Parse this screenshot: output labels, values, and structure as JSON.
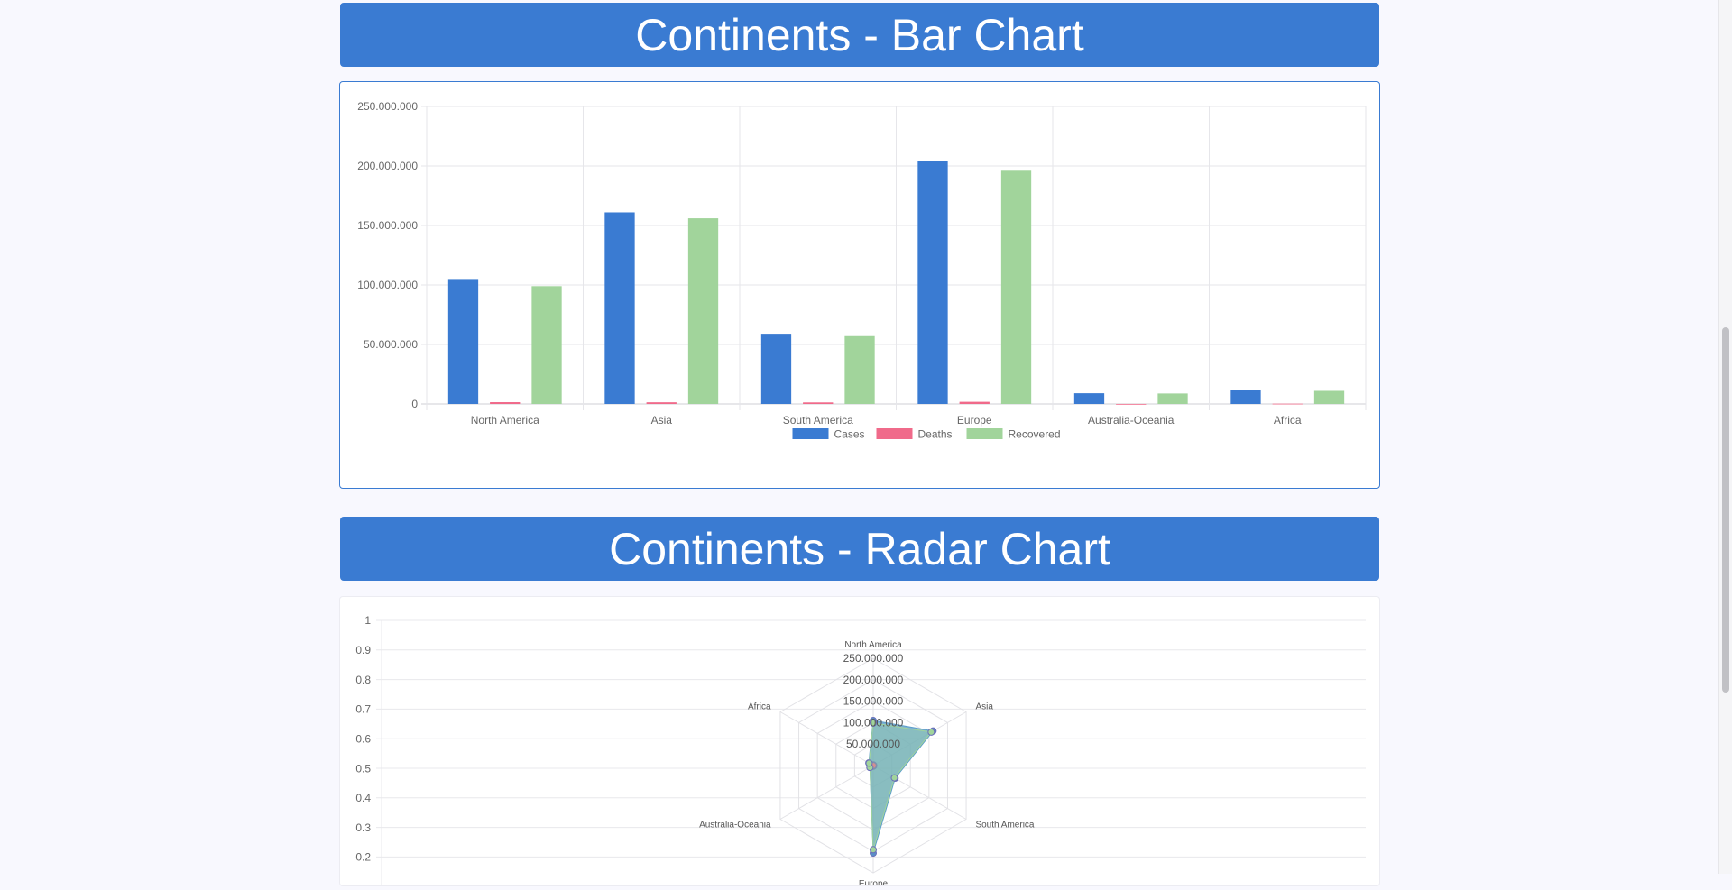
{
  "bar_section": {
    "title": "Continents - Bar Chart"
  },
  "radar_section": {
    "title": "Continents - Radar Chart"
  },
  "colors": {
    "accent": "#3a7bd2",
    "cases": "#3a7bd2",
    "deaths": "#f06a8a",
    "recovered": "#a1d49b",
    "radar_fill": "#5c9ec9"
  },
  "chart_data": [
    {
      "type": "bar",
      "categories": [
        "North America",
        "Asia",
        "South America",
        "Europe",
        "Australia-Oceania",
        "Africa"
      ],
      "series": [
        {
          "name": "Cases",
          "values": [
            105000000,
            161000000,
            59000000,
            204000000,
            9000000,
            12000000
          ]
        },
        {
          "name": "Deaths",
          "values": [
            1500000,
            1400000,
            1300000,
            1800000,
            25000,
            250000
          ]
        },
        {
          "name": "Recovered",
          "values": [
            99000000,
            156000000,
            57000000,
            196000000,
            8800000,
            11000000
          ]
        }
      ],
      "y_ticks": [
        "0",
        "50.000.000",
        "100.000.000",
        "150.000.000",
        "200.000.000",
        "250.000.000"
      ],
      "ylim": [
        0,
        250000000
      ],
      "legend_position": "bottom",
      "grid": true
    },
    {
      "type": "radar",
      "categories": [
        "North America",
        "Asia",
        "South America",
        "Europe",
        "Australia-Oceania",
        "Africa"
      ],
      "series": [
        {
          "name": "Cases",
          "values": [
            105000000,
            161000000,
            59000000,
            204000000,
            9000000,
            12000000
          ]
        },
        {
          "name": "Deaths",
          "values": [
            1500000,
            1400000,
            1300000,
            1800000,
            25000,
            250000
          ]
        },
        {
          "name": "Recovered",
          "values": [
            99000000,
            156000000,
            57000000,
            196000000,
            8800000,
            11000000
          ]
        }
      ],
      "r_ticks": [
        "50.000.000",
        "100.000.000",
        "150.000.000",
        "200.000.000",
        "250.000.000"
      ],
      "rlim": [
        0,
        250000000
      ],
      "y_axis_ticks": [
        "0.2",
        "0.3",
        "0.4",
        "0.5",
        "0.6",
        "0.7",
        "0.8",
        "0.9",
        "1"
      ],
      "grid": true
    }
  ]
}
